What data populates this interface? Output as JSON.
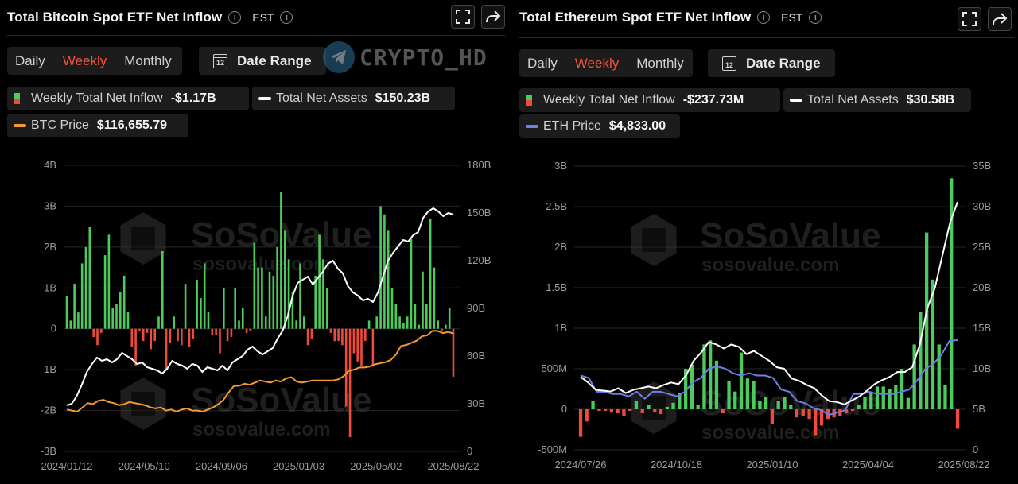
{
  "btc": {
    "title": "Total Bitcoin Spot ETF Net Inflow",
    "timezone": "EST",
    "periods": [
      "Daily",
      "Weekly",
      "Monthly"
    ],
    "active_period": "Weekly",
    "date_range_label": "Date Range",
    "calendar_day": "12",
    "legend": {
      "flow_label": "Weekly Total Net Inflow",
      "flow_value": "-$1.17B",
      "assets_label": "Total Net Assets",
      "assets_value": "$150.23B",
      "price_label": "BTC Price",
      "price_value": "$116,655.79"
    },
    "watermark": {
      "brand": "SoSoValue",
      "url": "sosovalue.com"
    },
    "overlay_watermark": "CRYPTO_HD"
  },
  "eth": {
    "title": "Total Ethereum Spot ETF Net Inflow",
    "timezone": "EST",
    "periods": [
      "Daily",
      "Weekly",
      "Monthly"
    ],
    "active_period": "Weekly",
    "date_range_label": "Date Range",
    "calendar_day": "12",
    "legend": {
      "flow_label": "Weekly Total Net Inflow",
      "flow_value": "-$237.73M",
      "assets_label": "Total Net Assets",
      "assets_value": "$30.58B",
      "price_label": "ETH Price",
      "price_value": "$4,833.00"
    },
    "watermark": {
      "brand": "SoSoValue",
      "url": "sosovalue.com"
    }
  },
  "colors": {
    "inflow": "#4ccb5c",
    "outflow": "#ee4b3c",
    "assets": "#ffffff",
    "btc_price": "#f59a2e",
    "eth_price": "#6c80e8",
    "active_tab": "#f0523a"
  },
  "chart_data": [
    {
      "id": "btc",
      "type": "bar",
      "title": "Total Bitcoin Spot ETF Net Inflow",
      "left_axis": {
        "ticks": [
          "4B",
          "3B",
          "2B",
          "1B",
          "0",
          "-1B",
          "-2B",
          "-3B"
        ],
        "range": [
          -3,
          4
        ],
        "unit": "B USD"
      },
      "right_axis": {
        "ticks": [
          "180B",
          "150B",
          "120B",
          "90B",
          "60B",
          "30B",
          "0"
        ],
        "range": [
          0,
          180
        ],
        "unit": "B USD"
      },
      "x_ticks": [
        "2024/01/12",
        "2024/05/10",
        "2024/09/06",
        "2025/01/03",
        "2025/05/02",
        "2025/08/22"
      ],
      "legend_placement": "top-left",
      "grid": true,
      "net_inflow_weekly_B": [
        0.8,
        0.2,
        1.1,
        0.4,
        1.6,
        2.0,
        2.5,
        -0.2,
        -0.4,
        -0.1,
        1.8,
        2.3,
        0.5,
        0.6,
        0.9,
        1.3,
        0.4,
        -0.45,
        -0.9,
        -0.05,
        -0.3,
        -0.1,
        -0.5,
        -0.3,
        0.3,
        1.9,
        -1.0,
        -0.35,
        0.3,
        -0.3,
        -0.4,
        1.1,
        -0.45,
        -0.25,
        1.2,
        0.75,
        1.6,
        0.4,
        -0.15,
        -0.15,
        -0.6,
        1.0,
        -0.3,
        -0.2,
        1.0,
        0.2,
        0.5,
        -0.1,
        -0.05,
        2.1,
        1.5,
        1.5,
        0.3,
        1.4,
        1.3,
        2.0,
        3.35,
        2.4,
        1.7,
        0.9,
        0.2,
        1.6,
        0.3,
        -0.4,
        -0.25,
        1.3,
        2.3,
        1.7,
        1.0,
        -0.1,
        -0.3,
        -0.3,
        -0.4,
        -1.9,
        -2.65,
        -0.6,
        -0.8,
        -0.9,
        -0.3,
        0.2,
        -0.9,
        0.3,
        3.0,
        2.8,
        2.4,
        1.0,
        0.6,
        0.3,
        0.15,
        0.3,
        2.2,
        0.6,
        0.1,
        1.4,
        0.6,
        2.7,
        1.5,
        0.2,
        -0.05,
        0.1,
        0.5,
        -1.17
      ],
      "total_net_assets_B": [
        29,
        30,
        35,
        42,
        50,
        55,
        59,
        57,
        58,
        56,
        58,
        62,
        60,
        58,
        55,
        56,
        53,
        52,
        51,
        49,
        52,
        57,
        55,
        54,
        52,
        55,
        54,
        50,
        53,
        52,
        51,
        54,
        51,
        56,
        58,
        60,
        64,
        66,
        63,
        61,
        63,
        65,
        71,
        76,
        85,
        98,
        106,
        108,
        110,
        105,
        109,
        113,
        118,
        120,
        115,
        112,
        104,
        100,
        98,
        95,
        96,
        94,
        100,
        110,
        120,
        125,
        129,
        133,
        132,
        136,
        138,
        147,
        151,
        153,
        151,
        148,
        150,
        149
      ],
      "btc_price_k": [
        46,
        45,
        44,
        48,
        52,
        51,
        54,
        55,
        53,
        52,
        50,
        51,
        53,
        52,
        51,
        50,
        48,
        47,
        48,
        45,
        46,
        44,
        46,
        47,
        45,
        45,
        44,
        46,
        48,
        51,
        55,
        62,
        68,
        68,
        70,
        69,
        71,
        73,
        72,
        71,
        73,
        72,
        75,
        76,
        72,
        71,
        72,
        73,
        73,
        73,
        73,
        73,
        74,
        77,
        82,
        83,
        85,
        85,
        86,
        88,
        89,
        90,
        92,
        97,
        105,
        106,
        108,
        110,
        114,
        115,
        119,
        119,
        117,
        118,
        116.7
      ]
    },
    {
      "id": "eth",
      "type": "bar",
      "title": "Total Ethereum Spot ETF Net Inflow",
      "left_axis": {
        "ticks": [
          "3B",
          "2.5B",
          "2B",
          "1.5B",
          "1B",
          "500M",
          "0",
          "-500M"
        ],
        "range": [
          -0.5,
          3
        ],
        "unit": "USD"
      },
      "right_axis": {
        "ticks": [
          "35B",
          "30B",
          "25B",
          "20B",
          "15B",
          "10B",
          "5B",
          "0"
        ],
        "range": [
          0,
          35
        ],
        "unit": "B USD"
      },
      "x_ticks": [
        "2024/07/26",
        "2024/10/18",
        "2025/01/10",
        "2025/04/04",
        "2025/08/22"
      ],
      "legend_placement": "top-left",
      "grid": true,
      "net_inflow_weekly_B": [
        -0.34,
        -0.15,
        0.1,
        -0.02,
        -0.02,
        -0.04,
        -0.05,
        -0.08,
        -0.02,
        0.1,
        -0.05,
        0.05,
        -0.04,
        -0.06,
        0.03,
        0.08,
        0.2,
        0.5,
        0.55,
        0.05,
        0.8,
        0.85,
        0.6,
        -0.05,
        0.35,
        0.22,
        0.7,
        0.38,
        0.35,
        0.1,
        0.15,
        -0.18,
        0.1,
        0.15,
        0.05,
        -0.1,
        -0.08,
        -0.12,
        -0.32,
        -0.2,
        -0.12,
        -0.1,
        -0.08,
        -0.05,
        -0.02,
        0.05,
        0.15,
        0.2,
        0.28,
        0.28,
        0.25,
        0.3,
        0.5,
        0.14,
        0.8,
        1.2,
        2.18,
        1.6,
        0.8,
        0.3,
        2.85,
        -0.24
      ],
      "total_net_assets_B": [
        9,
        8.3,
        7.4,
        7.3,
        7.2,
        7.6,
        7.0,
        7.4,
        7.6,
        7.8,
        7.6,
        8.0,
        8.3,
        8.1,
        9.2,
        11,
        12,
        13.3,
        13.0,
        12.5,
        13.0,
        12.7,
        11.8,
        12.2,
        11.6,
        11.0,
        10.2,
        10.0,
        8.8,
        8.5,
        8.0,
        7.6,
        6.7,
        6.0,
        5.9,
        5.6,
        6.1,
        6.6,
        7.3,
        8.1,
        8.6,
        9.0,
        9.6,
        9.6,
        10.2,
        13.0,
        17.5,
        20.0,
        24.0,
        28.0,
        30.58
      ],
      "eth_price_k": [
        3.3,
        3.2,
        2.6,
        2.6,
        2.5,
        2.5,
        2.4,
        2.6,
        2.3,
        2.6,
        2.6,
        2.5,
        2.4,
        2.6,
        3.0,
        3.2,
        3.6,
        3.7,
        3.6,
        3.4,
        3.3,
        3.4,
        3.3,
        3.3,
        3.2,
        2.7,
        2.6,
        2.2,
        2.1,
        1.9,
        1.8,
        1.6,
        1.7,
        1.8,
        2.5,
        2.5,
        2.6,
        2.5,
        2.5,
        2.5,
        2.6,
        2.7,
        3.1,
        3.6,
        3.8,
        4.2,
        4.8,
        4.83
      ]
    }
  ]
}
